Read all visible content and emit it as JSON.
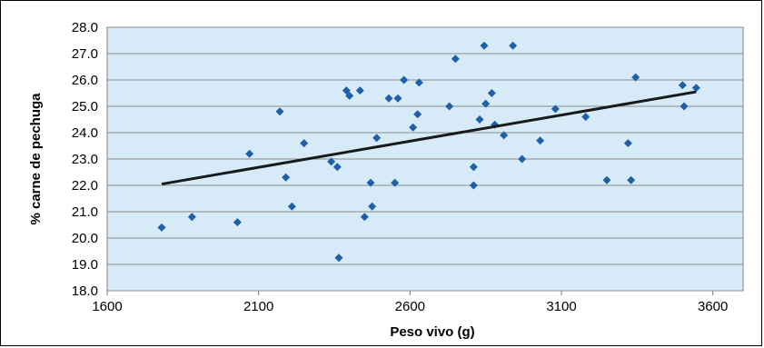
{
  "chart_data": {
    "type": "scatter",
    "title": "",
    "xlabel": "Peso vivo (g)",
    "ylabel": "% carne de pechuga",
    "xlim": [
      1600,
      3700
    ],
    "ylim": [
      18.0,
      28.0
    ],
    "x_ticks": [
      1600,
      2100,
      2600,
      3100,
      3600
    ],
    "y_ticks": [
      18.0,
      19.0,
      20.0,
      21.0,
      22.0,
      23.0,
      24.0,
      25.0,
      26.0,
      27.0,
      28.0
    ],
    "x_tick_labels": [
      "1600",
      "2100",
      "2600",
      "3100",
      "3600"
    ],
    "y_tick_labels": [
      "18.0",
      "19.0",
      "20.0",
      "21.0",
      "22.0",
      "23.0",
      "24.0",
      "25.0",
      "26.0",
      "27.0",
      "28.0"
    ],
    "grid": "horizontal",
    "legend": "none",
    "colors": {
      "plot_background": "#d6eaf8",
      "marker": "#1f5fa8",
      "trendline": "#1a1a1a",
      "grid": "#8c8c8c"
    },
    "points": [
      {
        "x": 1780,
        "y": 20.4
      },
      {
        "x": 1880,
        "y": 20.8
      },
      {
        "x": 2030,
        "y": 20.6
      },
      {
        "x": 2070,
        "y": 23.2
      },
      {
        "x": 2170,
        "y": 24.8
      },
      {
        "x": 2190,
        "y": 22.3
      },
      {
        "x": 2210,
        "y": 21.2
      },
      {
        "x": 2250,
        "y": 23.6
      },
      {
        "x": 2340,
        "y": 22.9
      },
      {
        "x": 2360,
        "y": 22.7
      },
      {
        "x": 2365,
        "y": 19.25
      },
      {
        "x": 2390,
        "y": 25.6
      },
      {
        "x": 2400,
        "y": 25.4
      },
      {
        "x": 2435,
        "y": 25.6
      },
      {
        "x": 2450,
        "y": 20.8
      },
      {
        "x": 2470,
        "y": 22.1
      },
      {
        "x": 2475,
        "y": 21.2
      },
      {
        "x": 2490,
        "y": 23.8
      },
      {
        "x": 2530,
        "y": 25.3
      },
      {
        "x": 2550,
        "y": 22.1
      },
      {
        "x": 2560,
        "y": 25.3
      },
      {
        "x": 2580,
        "y": 26.0
      },
      {
        "x": 2610,
        "y": 24.2
      },
      {
        "x": 2625,
        "y": 24.7
      },
      {
        "x": 2630,
        "y": 25.9
      },
      {
        "x": 2730,
        "y": 25.0
      },
      {
        "x": 2750,
        "y": 26.8
      },
      {
        "x": 2810,
        "y": 22.7
      },
      {
        "x": 2810,
        "y": 22.0
      },
      {
        "x": 2830,
        "y": 24.5
      },
      {
        "x": 2850,
        "y": 25.1
      },
      {
        "x": 2845,
        "y": 27.3
      },
      {
        "x": 2870,
        "y": 25.5
      },
      {
        "x": 2880,
        "y": 24.3
      },
      {
        "x": 2910,
        "y": 23.9
      },
      {
        "x": 2940,
        "y": 27.3
      },
      {
        "x": 2970,
        "y": 23.0
      },
      {
        "x": 3030,
        "y": 23.7
      },
      {
        "x": 3080,
        "y": 24.9
      },
      {
        "x": 3180,
        "y": 24.6
      },
      {
        "x": 3250,
        "y": 22.2
      },
      {
        "x": 3320,
        "y": 23.6
      },
      {
        "x": 3330,
        "y": 22.2
      },
      {
        "x": 3345,
        "y": 26.1
      },
      {
        "x": 3500,
        "y": 25.8
      },
      {
        "x": 3505,
        "y": 25.0
      },
      {
        "x": 3545,
        "y": 25.7
      }
    ],
    "trendline": {
      "x": [
        1780,
        3545
      ],
      "y": [
        22.05,
        25.55
      ]
    }
  }
}
